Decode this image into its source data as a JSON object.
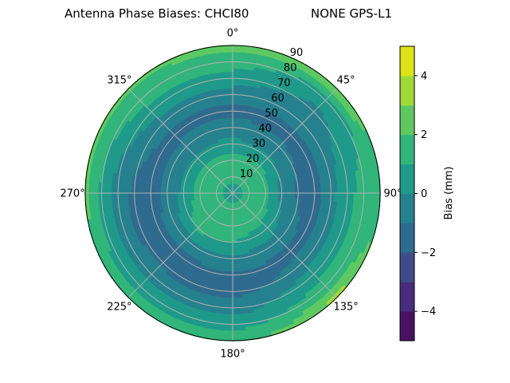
{
  "chart_data": {
    "type": "polar-contour",
    "title_left": "Antenna Phase Biases: CHCI80",
    "title_right": "NONE GPS-L1",
    "theta_direction": "clockwise",
    "theta_zero": "top",
    "theta_tick_labels": [
      "0°",
      "45°",
      "90°",
      "135°",
      "180°",
      "225°",
      "270°",
      "315°"
    ],
    "theta_ticks": [
      0,
      45,
      90,
      135,
      180,
      225,
      270,
      315
    ],
    "r_ticks": [
      10,
      20,
      30,
      40,
      50,
      60,
      70,
      80,
      90
    ],
    "r_tick_labels": [
      "10",
      "20",
      "30",
      "40",
      "50",
      "60",
      "70",
      "80",
      "90"
    ],
    "rlim": [
      0,
      90
    ],
    "grid": true,
    "levels": [
      -5,
      -4,
      -3,
      -2,
      -1,
      0,
      1,
      2,
      3,
      4,
      5
    ],
    "colormap": "viridis",
    "level_colors": [
      "#471164",
      "#472d7b",
      "#3e4c8a",
      "#2f6b8e",
      "#26818e",
      "#1f9a8a",
      "#31b57b",
      "#5ec962",
      "#a0da39",
      "#dde318"
    ],
    "grid_azimuths": [
      0,
      45,
      90,
      135,
      180,
      225,
      270,
      315
    ],
    "grid_radii": [
      0,
      10,
      20,
      30,
      40,
      50,
      60,
      70,
      80,
      90
    ],
    "values": [
      [
        0.5,
        1.2,
        1.5,
        0.3,
        -0.6,
        -1.3,
        -0.5,
        0.5,
        1.5,
        2.3
      ],
      [
        0.5,
        1.3,
        1.5,
        0.2,
        -0.8,
        -1.4,
        -0.6,
        -0.3,
        0.5,
        3.2
      ],
      [
        0.5,
        1.3,
        1.2,
        -0.3,
        -1.2,
        -1.3,
        -0.3,
        0.8,
        1.3,
        1.0
      ],
      [
        0.5,
        1.3,
        1.5,
        0.5,
        -0.5,
        -1.3,
        -0.6,
        0.6,
        1.5,
        3.3
      ],
      [
        0.5,
        1.4,
        1.6,
        1.0,
        -0.3,
        -1.2,
        -1.4,
        -0.5,
        0.5,
        1.5
      ],
      [
        0.5,
        1.4,
        1.6,
        1.2,
        -0.5,
        -1.3,
        -1.2,
        -0.5,
        0.5,
        1.5
      ],
      [
        0.5,
        1.3,
        1.5,
        0.3,
        -0.8,
        -1.3,
        -1.2,
        -0.6,
        0.8,
        2.3
      ],
      [
        0.5,
        1.3,
        1.4,
        0.2,
        -0.7,
        -1.3,
        -0.5,
        0.6,
        1.4,
        2.2
      ]
    ],
    "colorbar": {
      "label": "Bias (mm)",
      "range": [
        -5,
        5
      ],
      "ticks": [
        -4,
        -2,
        0,
        2,
        4
      ],
      "tick_labels": [
        "−4",
        "−2",
        "0",
        "2",
        "4"
      ]
    }
  }
}
